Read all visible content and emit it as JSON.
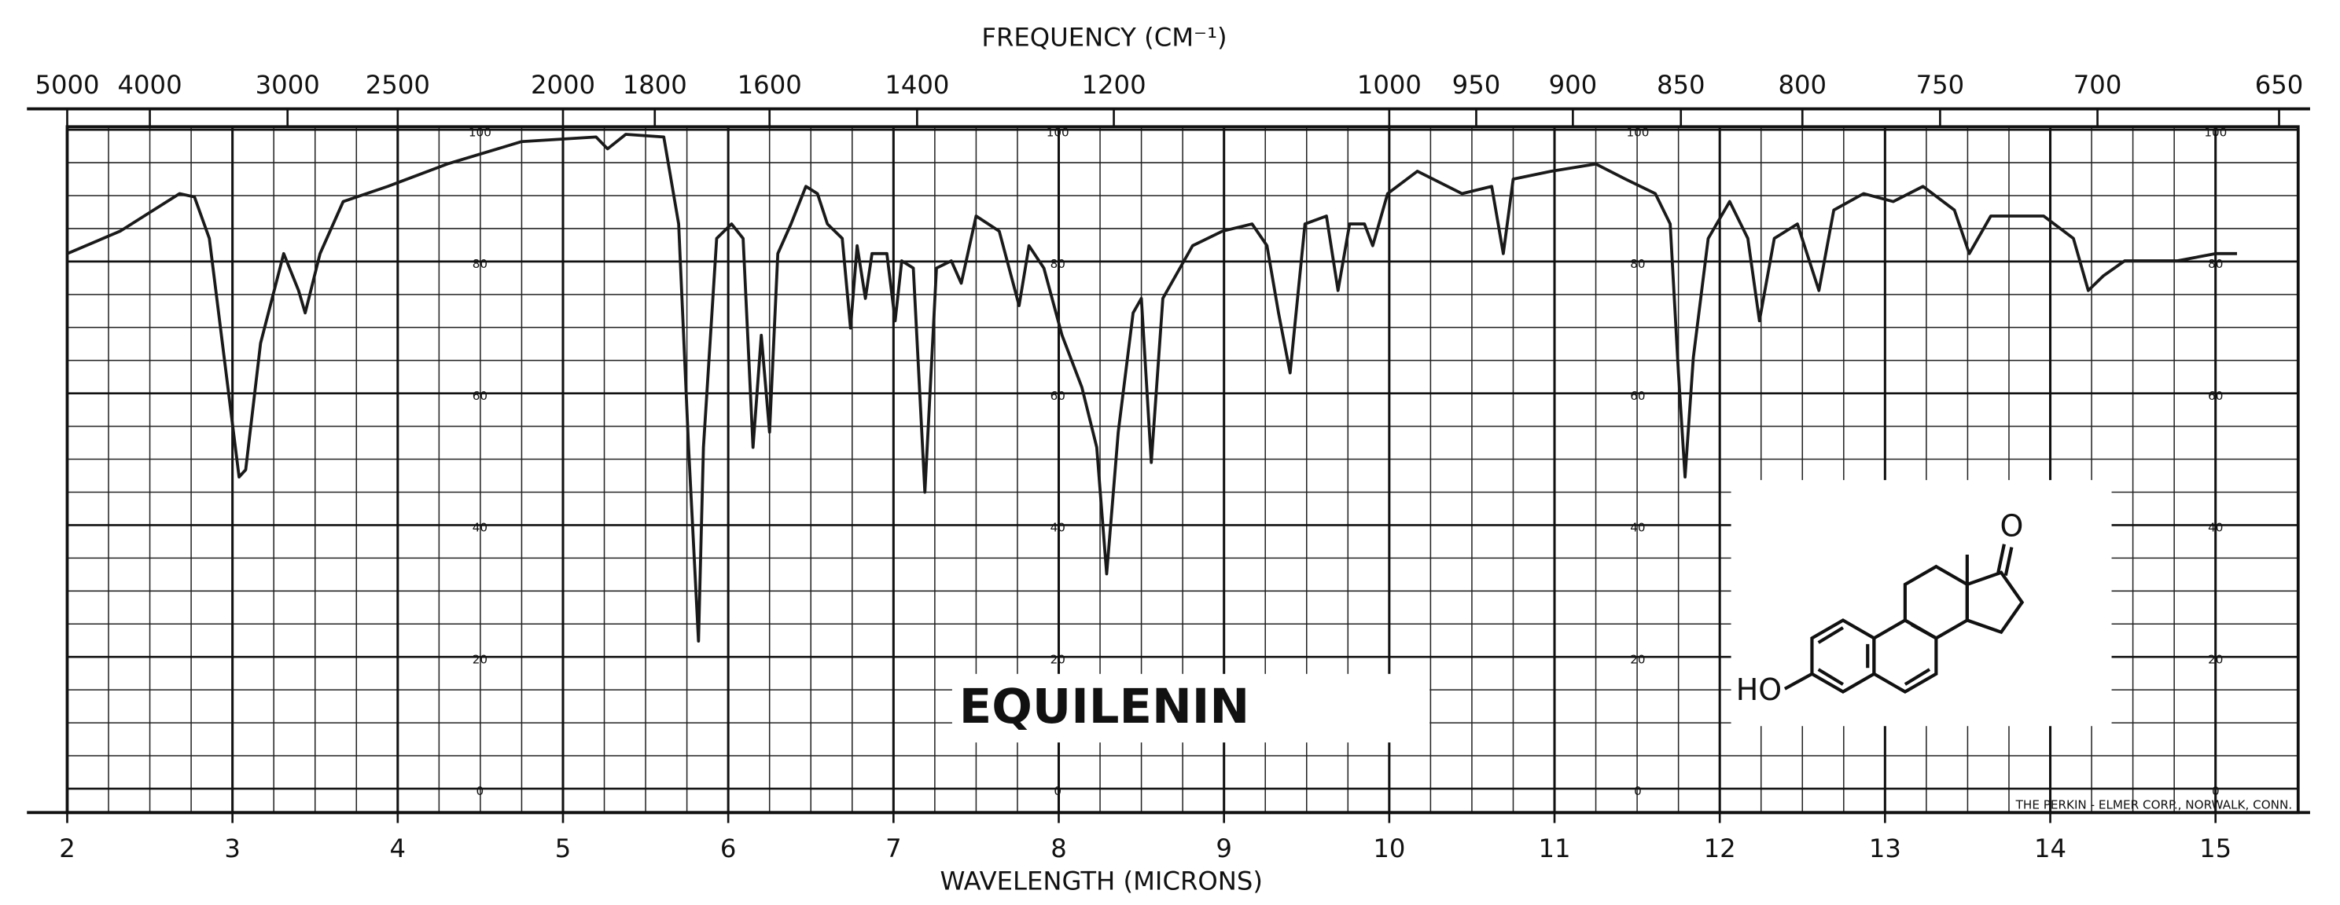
{
  "chart_data": {
    "type": "line",
    "title": "EQUILENIN",
    "xlabel": "WAVELENGTH (MICRONS)",
    "x2label": "FREQUENCY (CM⁻¹)",
    "annotation": "THE PERKIN - ELMER CORP., NORWALK, CONN.",
    "structure_labels": [
      "O",
      "HO"
    ],
    "color": "#1a1a1a",
    "grid": true,
    "xlim": [
      2,
      15.5
    ],
    "xticks": [
      2,
      3,
      4,
      5,
      6,
      7,
      8,
      9,
      10,
      11,
      12,
      13,
      14,
      15
    ],
    "ylim": [
      0,
      100
    ],
    "yticks": [
      0,
      20,
      40,
      60,
      80,
      100
    ],
    "x2ticks": [
      5000,
      4000,
      3000,
      2500,
      2000,
      1800,
      1600,
      1400,
      1200,
      1000,
      950,
      900,
      850,
      800,
      750,
      700,
      650
    ],
    "x": [
      2.0,
      2.32,
      2.68,
      2.77,
      2.86,
      2.95,
      3.04,
      3.08,
      3.17,
      3.31,
      3.4,
      3.44,
      3.53,
      3.67,
      3.94,
      4.3,
      4.75,
      5.2,
      5.27,
      5.38,
      5.61,
      5.7,
      5.76,
      5.82,
      5.85,
      5.93,
      6.02,
      6.09,
      6.15,
      6.2,
      6.25,
      6.3,
      6.38,
      6.47,
      6.54,
      6.6,
      6.69,
      6.74,
      6.78,
      6.83,
      6.87,
      6.96,
      7.01,
      7.05,
      7.12,
      7.19,
      7.26,
      7.35,
      7.41,
      7.5,
      7.64,
      7.76,
      7.82,
      7.91,
      8.02,
      8.14,
      8.23,
      8.29,
      8.36,
      8.45,
      8.5,
      8.56,
      8.63,
      8.81,
      8.99,
      9.17,
      9.26,
      9.33,
      9.4,
      9.49,
      9.62,
      9.69,
      9.76,
      9.85,
      9.9,
      9.99,
      10.17,
      10.44,
      10.62,
      10.69,
      10.75,
      10.98,
      11.25,
      11.43,
      11.61,
      11.7,
      11.75,
      11.79,
      11.84,
      11.93,
      12.06,
      12.17,
      12.24,
      12.33,
      12.47,
      12.6,
      12.69,
      12.87,
      13.05,
      13.23,
      13.42,
      13.51,
      13.64,
      13.96,
      14.14,
      14.23,
      14.32,
      14.45,
      14.77,
      15.0,
      15.13
    ],
    "values": [
      81.2,
      84.6,
      90.3,
      89.8,
      83.5,
      65.4,
      47.3,
      48.4,
      67.6,
      81.2,
      75.6,
      72.2,
      81.2,
      89.1,
      91.4,
      94.8,
      98.2,
      98.9,
      97.1,
      99.3,
      98.9,
      85.7,
      51.8,
      22.4,
      51.8,
      83.5,
      85.7,
      83.5,
      51.8,
      68.8,
      54.1,
      81.2,
      85.7,
      91.4,
      90.3,
      85.7,
      83.5,
      69.9,
      82.4,
      74.4,
      81.2,
      81.2,
      71.0,
      80.1,
      79.0,
      45.0,
      79.0,
      80.1,
      76.7,
      86.9,
      84.6,
      73.3,
      82.4,
      79.0,
      68.8,
      60.9,
      51.8,
      32.6,
      54.1,
      72.2,
      74.4,
      49.5,
      74.4,
      82.4,
      84.6,
      85.7,
      82.4,
      72.2,
      63.1,
      85.7,
      86.9,
      75.6,
      85.7,
      85.7,
      82.4,
      90.3,
      93.7,
      90.3,
      91.4,
      81.2,
      92.5,
      93.7,
      94.8,
      92.5,
      90.3,
      85.7,
      63.1,
      47.3,
      65.4,
      83.5,
      89.1,
      83.5,
      71.0,
      83.5,
      85.7,
      75.6,
      87.8,
      90.3,
      89.1,
      91.4,
      87.8,
      81.2,
      86.9,
      86.9,
      83.5,
      75.6,
      77.8,
      80.1,
      80.1,
      81.2,
      81.2
    ]
  }
}
